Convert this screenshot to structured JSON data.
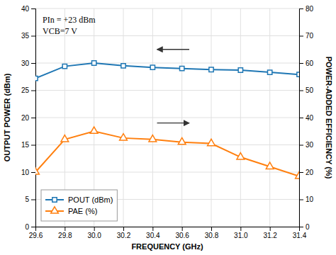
{
  "chart_data": {
    "type": "line",
    "x_label": "FREQUENCY (GHz)",
    "y_label": "OUTPUT POWER (dBm)",
    "y2_label": "POWER-ADDED EFFICIENCY (%)",
    "x": [
      29.6,
      29.8,
      30.0,
      30.2,
      30.4,
      30.6,
      30.8,
      31.0,
      31.2,
      31.4
    ],
    "series": [
      {
        "name": "POUT (dBm)",
        "marker": "square",
        "values": [
          27.2,
          29.4,
          30.0,
          29.5,
          29.2,
          29.0,
          28.8,
          28.7,
          28.3,
          27.9
        ]
      },
      {
        "name": "PAE (%)",
        "marker": "triangle",
        "axis": "y2",
        "values": [
          20.0,
          32.0,
          35.0,
          32.5,
          32.0,
          31.0,
          30.5,
          25.5,
          22.0,
          18.5
        ]
      }
    ],
    "xlim": [
      29.6,
      31.4
    ],
    "xticks": [
      29.6,
      29.8,
      {
        "value": 30.0,
        "label": "30.0"
      },
      30.2,
      30.4,
      30.6,
      30.8,
      {
        "value": 31.0,
        "label": "31.0"
      },
      31.2,
      31.4
    ],
    "ylim": [
      0,
      40
    ],
    "yticks": [
      0,
      5,
      10,
      15,
      20,
      25,
      30,
      35,
      40
    ],
    "y2lim": [
      0,
      80
    ],
    "y2ticks": [
      0,
      10,
      20,
      30,
      40,
      50,
      60,
      70,
      80
    ],
    "annotations": [
      "PIn = +23 dBm",
      "VCB=7 V"
    ],
    "arrows": [
      {
        "x": [
          30.65,
          30.43
        ],
        "y": 32.5
      },
      {
        "x": [
          30.43,
          30.65
        ],
        "y": 19.0
      }
    ],
    "grid": true,
    "legend": "lower left"
  }
}
